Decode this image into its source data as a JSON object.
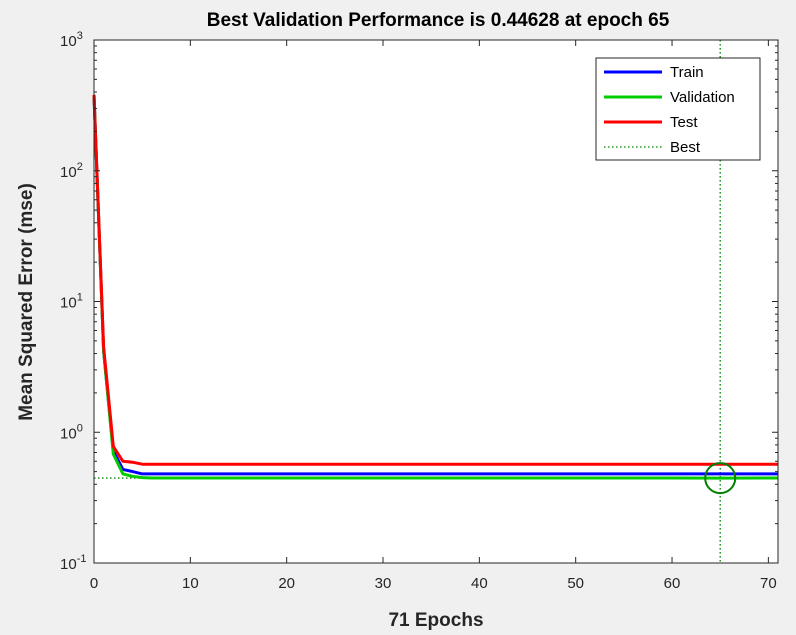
{
  "chart_data": {
    "type": "line",
    "title": "Best Validation Performance is 0.44628 at epoch 65",
    "xlabel": "71 Epochs",
    "ylabel": "Mean Squared Error  (mse)",
    "xlim": [
      0,
      71
    ],
    "ylim": [
      0.1,
      1000
    ],
    "yscale": "log",
    "grid": false,
    "legend_position": "top-right",
    "x_ticks": [
      "0",
      "10",
      "20",
      "30",
      "40",
      "50",
      "60",
      "70"
    ],
    "y_ticks": [
      {
        "value": 0.1,
        "base": "10",
        "exp": "-1"
      },
      {
        "value": 1,
        "base": "10",
        "exp": "0"
      },
      {
        "value": 10,
        "base": "10",
        "exp": "1"
      },
      {
        "value": 100,
        "base": "10",
        "exp": "2"
      },
      {
        "value": 1000,
        "base": "10",
        "exp": "3"
      }
    ],
    "series": [
      {
        "name": "Train",
        "color": "#0000ff",
        "x": [
          0,
          1,
          2,
          3,
          4,
          5,
          6,
          10,
          20,
          30,
          40,
          50,
          60,
          65,
          71
        ],
        "y": [
          380,
          4.2,
          0.72,
          0.52,
          0.5,
          0.48,
          0.48,
          0.48,
          0.48,
          0.48,
          0.48,
          0.48,
          0.48,
          0.48,
          0.48
        ]
      },
      {
        "name": "Validation",
        "color": "#00cc00",
        "x": [
          0,
          1,
          2,
          3,
          4,
          5,
          6,
          10,
          20,
          30,
          40,
          50,
          60,
          65,
          71
        ],
        "y": [
          380,
          4.2,
          0.68,
          0.48,
          0.46,
          0.45,
          0.447,
          0.447,
          0.447,
          0.447,
          0.447,
          0.447,
          0.447,
          0.446,
          0.447
        ]
      },
      {
        "name": "Test",
        "color": "#ff0000",
        "x": [
          0,
          1,
          2,
          3,
          4,
          5,
          6,
          10,
          20,
          30,
          40,
          50,
          60,
          65,
          71
        ],
        "y": [
          380,
          4.5,
          0.78,
          0.6,
          0.59,
          0.57,
          0.57,
          0.57,
          0.57,
          0.57,
          0.57,
          0.57,
          0.57,
          0.57,
          0.57
        ]
      }
    ],
    "best": {
      "name": "Best",
      "epoch": 65,
      "value": 0.44628,
      "color": "#008000"
    }
  }
}
